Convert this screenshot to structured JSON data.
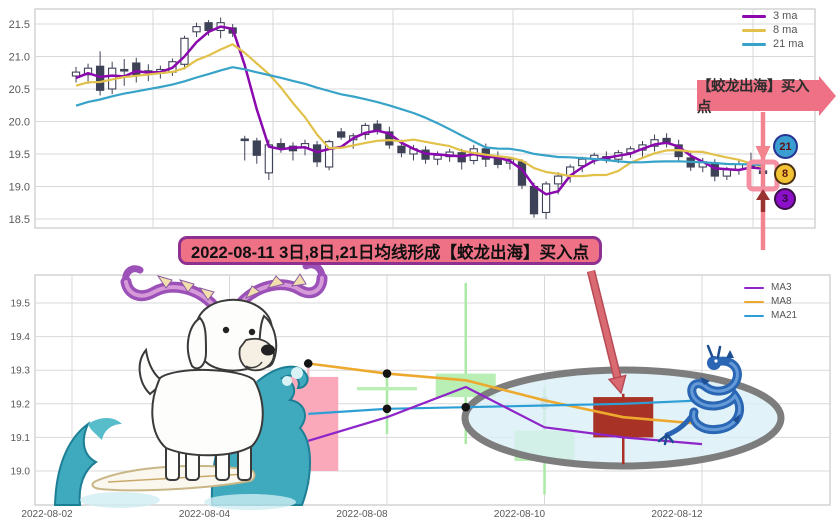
{
  "page": {
    "background": "#ffffff"
  },
  "top_chart": {
    "legend": [
      {
        "label": "3 ma"
      },
      {
        "label": "8 ma"
      },
      {
        "label": "21 ma"
      }
    ],
    "y_tick_labels": [
      "21.5",
      "21.0",
      "20.5",
      "20.0",
      "19.5",
      "19.0",
      "18.5"
    ],
    "annotation_label": "【蛟龙出海】买入点",
    "badges": [
      {
        "label": "21",
        "fill": "#3a9fd0",
        "border": "#283593",
        "text_color": "#5d1212"
      },
      {
        "label": "8",
        "fill": "#f2c235",
        "border": "#4a2f10",
        "text_color": "#5d1212"
      },
      {
        "label": "3",
        "fill": "#8c0fc9",
        "border": "#3c1048",
        "text_color": "#2b0a3a"
      }
    ]
  },
  "banner": {
    "text": "2022-08-11 3日,8日,21日均线形成【蛟龙出海】买入点"
  },
  "bottom_chart": {
    "legend": [
      {
        "label": "MA3"
      },
      {
        "label": "MA8"
      },
      {
        "label": "MA21"
      }
    ],
    "y_tick_labels": [
      "19.5",
      "19.4",
      "19.3",
      "19.2",
      "19.1",
      "19.0"
    ],
    "x_tick_labels": [
      "2022-08-02",
      "2022-08-04",
      "2022-08-08",
      "2022-08-10",
      "2022-08-12"
    ]
  },
  "colors": {
    "ma3_top": "#8a08ad",
    "ma8_top": "#e2c14b",
    "ma21_top": "#38a3c8",
    "ma3_bottom": "#8d25c9",
    "ma8_bottom": "#eda92d",
    "ma21_bottom": "#2e9fd6",
    "candle_dark": "#3e4257",
    "candle_up_fill": "#ffffff",
    "pink_candle": "#f9a9ba",
    "pink_wick": "#f6b9c6",
    "green_candle": "#b9efb4",
    "green_wick": "#abe9a6",
    "dark_red_candle": "#a93226",
    "grid": "#d9d9d9",
    "frame": "#c8c8c8",
    "axis_text": "#595959",
    "highlight_pink": "#f2838f",
    "highlight_square": "#f590a3",
    "dark_red_arrow": "#993332",
    "ellipse_fill": "#d9eef6",
    "ellipse_stroke": "#7d7d7d",
    "red_arrow": "#d96a72",
    "red_arrow_dark": "#b84a55",
    "banner_bg": "#ee7186",
    "banner_border": "#8d3090",
    "marker_dot": "#141414"
  },
  "chart_data": [
    {
      "id": "daily-overview",
      "type": "candlestick",
      "legend": [
        "3 ma",
        "8 ma",
        "21 ma"
      ],
      "ylim": [
        18.36,
        21.73
      ],
      "y_ticks": [
        21.5,
        21.0,
        20.5,
        20.0,
        19.5,
        19.0,
        18.5
      ],
      "grid": true,
      "legend_position": "upper right",
      "ma_windows": [
        3,
        8,
        21
      ],
      "ma_seed_closes": [
        19.6,
        19.7,
        19.8,
        19.9,
        20.0,
        20.05,
        20.1,
        20.15,
        20.2,
        20.25,
        20.3,
        20.3,
        20.35,
        20.4,
        20.45,
        20.5,
        20.5,
        20.55,
        20.6,
        20.65
      ],
      "highlight_last_candle": true,
      "ohlc": [
        [
          20.7,
          20.84,
          20.6,
          20.76
        ],
        [
          20.72,
          20.89,
          20.58,
          20.82
        ],
        [
          20.85,
          21.08,
          20.4,
          20.48
        ],
        [
          20.5,
          20.92,
          20.42,
          20.82
        ],
        [
          20.8,
          20.96,
          20.55,
          20.78
        ],
        [
          20.9,
          20.98,
          20.6,
          20.72
        ],
        [
          20.78,
          20.88,
          20.62,
          20.76
        ],
        [
          20.74,
          20.86,
          20.66,
          20.8
        ],
        [
          20.76,
          20.97,
          20.7,
          20.92
        ],
        [
          20.88,
          21.32,
          20.8,
          21.28
        ],
        [
          21.38,
          21.52,
          21.3,
          21.46
        ],
        [
          21.52,
          21.56,
          21.32,
          21.4
        ],
        [
          21.4,
          21.6,
          21.28,
          21.52
        ],
        [
          21.44,
          21.5,
          21.3,
          21.36
        ],
        [
          19.73,
          19.78,
          19.4,
          19.72
        ],
        [
          19.7,
          19.75,
          19.35,
          19.48
        ],
        [
          19.21,
          19.72,
          19.1,
          19.64
        ],
        [
          19.66,
          19.74,
          19.52,
          19.6
        ],
        [
          19.62,
          19.68,
          19.4,
          19.55
        ],
        [
          19.6,
          19.72,
          19.48,
          19.66
        ],
        [
          19.64,
          19.7,
          19.3,
          19.38
        ],
        [
          19.3,
          19.72,
          19.25,
          19.69
        ],
        [
          19.84,
          19.9,
          19.72,
          19.76
        ],
        [
          19.72,
          19.82,
          19.58,
          19.78
        ],
        [
          19.8,
          19.98,
          19.72,
          19.94
        ],
        [
          19.96,
          20.02,
          19.8,
          19.86
        ],
        [
          19.84,
          19.92,
          19.58,
          19.64
        ],
        [
          19.62,
          19.72,
          19.45,
          19.52
        ],
        [
          19.5,
          19.64,
          19.4,
          19.58
        ],
        [
          19.56,
          19.62,
          19.35,
          19.42
        ],
        [
          19.42,
          19.54,
          19.33,
          19.48
        ],
        [
          19.46,
          19.58,
          19.38,
          19.53
        ],
        [
          19.52,
          19.58,
          19.26,
          19.38
        ],
        [
          19.4,
          19.64,
          19.34,
          19.58
        ],
        [
          19.58,
          19.66,
          19.3,
          19.42
        ],
        [
          19.44,
          19.54,
          19.28,
          19.34
        ],
        [
          19.36,
          19.46,
          19.26,
          19.42
        ],
        [
          19.38,
          19.42,
          18.96,
          19.02
        ],
        [
          19.0,
          19.06,
          18.52,
          18.58
        ],
        [
          18.6,
          19.08,
          18.5,
          19.04
        ],
        [
          19.04,
          19.22,
          18.88,
          19.16
        ],
        [
          19.16,
          19.34,
          19.06,
          19.3
        ],
        [
          19.32,
          19.46,
          19.22,
          19.42
        ],
        [
          19.42,
          19.52,
          19.34,
          19.48
        ],
        [
          19.46,
          19.54,
          19.36,
          19.42
        ],
        [
          19.42,
          19.56,
          19.36,
          19.52
        ],
        [
          19.52,
          19.62,
          19.44,
          19.58
        ],
        [
          19.56,
          19.7,
          19.46,
          19.64
        ],
        [
          19.62,
          19.8,
          19.54,
          19.72
        ],
        [
          19.74,
          19.82,
          19.6,
          19.66
        ],
        [
          19.64,
          19.72,
          19.4,
          19.46
        ],
        [
          19.44,
          19.52,
          19.24,
          19.3
        ],
        [
          19.3,
          19.44,
          19.22,
          19.38
        ],
        [
          19.36,
          19.42,
          19.08,
          19.16
        ],
        [
          19.16,
          19.3,
          19.1,
          19.26
        ],
        [
          19.26,
          19.4,
          19.18,
          19.34
        ],
        [
          19.34,
          19.52,
          19.24,
          19.28
        ],
        [
          19.24,
          19.34,
          19.04,
          19.2
        ]
      ]
    },
    {
      "id": "zoom-view",
      "type": "candlestick",
      "legend": [
        "MA3",
        "MA8",
        "MA21"
      ],
      "dates": [
        "2022-08-02",
        "2022-08-03",
        "2022-08-04",
        "2022-08-05",
        "2022-08-08",
        "2022-08-09",
        "2022-08-10",
        "2022-08-11",
        "2022-08-12"
      ],
      "x_tick_labels": [
        "2022-08-02",
        "2022-08-04",
        "2022-08-08",
        "2022-08-10",
        "2022-08-12"
      ],
      "ylim": [
        18.9,
        19.58
      ],
      "y_ticks": [
        19.0,
        19.1,
        19.2,
        19.3,
        19.4,
        19.5
      ],
      "grid": true,
      "candles": [
        {
          "date": "2022-08-05",
          "o": 19.28,
          "h": 19.32,
          "l": 18.96,
          "c": 19.0,
          "style": "pink"
        },
        {
          "date": "2022-08-08",
          "o": 19.24,
          "h": 19.28,
          "l": 19.11,
          "c": 19.25,
          "style": "green"
        },
        {
          "date": "2022-08-09",
          "o": 19.22,
          "h": 19.56,
          "l": 19.08,
          "c": 19.29,
          "style": "green"
        },
        {
          "date": "2022-08-10",
          "o": 19.03,
          "h": 19.25,
          "l": 18.93,
          "c": 19.12,
          "style": "green"
        },
        {
          "date": "2022-08-11",
          "o": 19.22,
          "h": 19.23,
          "l": 19.02,
          "c": 19.1,
          "style": "dark_red"
        }
      ],
      "ma3": {
        "start_date": "2022-08-05",
        "values": [
          19.09,
          19.16,
          19.25,
          19.13,
          19.1,
          19.08
        ]
      },
      "ma8": {
        "start_date": "2022-08-05",
        "values": [
          19.32,
          19.29,
          19.27,
          19.21,
          19.16,
          19.14
        ]
      },
      "ma21": {
        "start_date": "2022-08-05",
        "values": [
          19.17,
          19.185,
          19.19,
          19.195,
          19.2,
          19.21
        ]
      },
      "markers": [
        {
          "ma": "ma8",
          "date": "2022-08-05",
          "faded": false
        },
        {
          "ma": "ma8",
          "date": "2022-08-08",
          "faded": false
        },
        {
          "ma": "ma21",
          "date": "2022-08-08",
          "faded": false
        },
        {
          "ma": "ma21",
          "date": "2022-08-09",
          "faded": false
        },
        {
          "ma": "ma8",
          "date": "2022-08-10",
          "faded": true
        },
        {
          "ma": "ma21",
          "date": "2022-08-10",
          "faded": true
        }
      ],
      "highlight_ellipse_dates": [
        "2022-08-09",
        "2022-08-12"
      ]
    }
  ]
}
